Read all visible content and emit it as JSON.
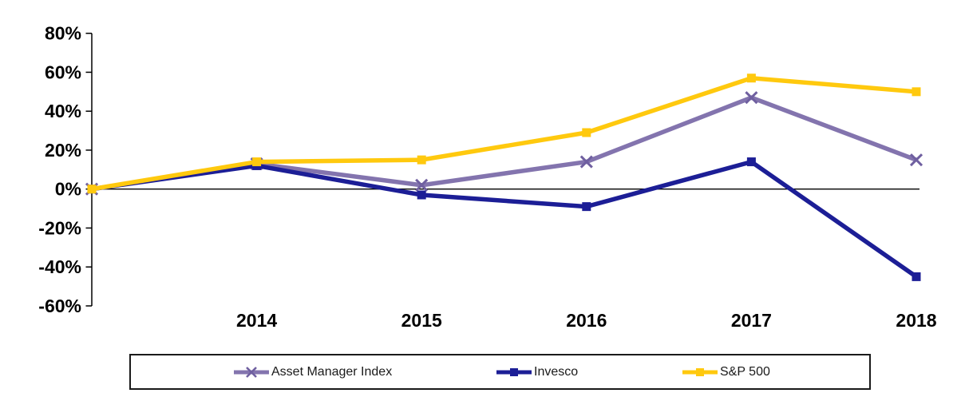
{
  "chart_data": {
    "type": "line",
    "title": "",
    "xlabel": "",
    "ylabel": "",
    "categories": [
      "",
      "2014",
      "2015",
      "2016",
      "2017",
      "2018"
    ],
    "series": [
      {
        "name": "Asset Manager Index",
        "values": [
          0,
          13,
          2,
          14,
          47,
          15
        ],
        "color": "#8374AE",
        "marker_color": "#6F5FA0",
        "marker": "x"
      },
      {
        "name": "Invesco",
        "values": [
          0,
          12,
          -3,
          -9,
          14,
          -45
        ],
        "color": "#1C1E96",
        "marker_color": "#1C1E96",
        "marker": "square"
      },
      {
        "name": "S&P 500",
        "values": [
          0,
          14,
          15,
          29,
          57,
          50
        ],
        "color": "#FFC90E",
        "marker_color": "#FFC90E",
        "marker": "square"
      }
    ],
    "ylim": [
      -60,
      80
    ],
    "ytick_step": 20,
    "ytick_labels": [
      "80%",
      "60%",
      "40%",
      "20%",
      "0%",
      "-20%",
      "-40%",
      "-60%"
    ],
    "grid": false,
    "legend_position": "bottom",
    "axis_color": "#000000"
  }
}
